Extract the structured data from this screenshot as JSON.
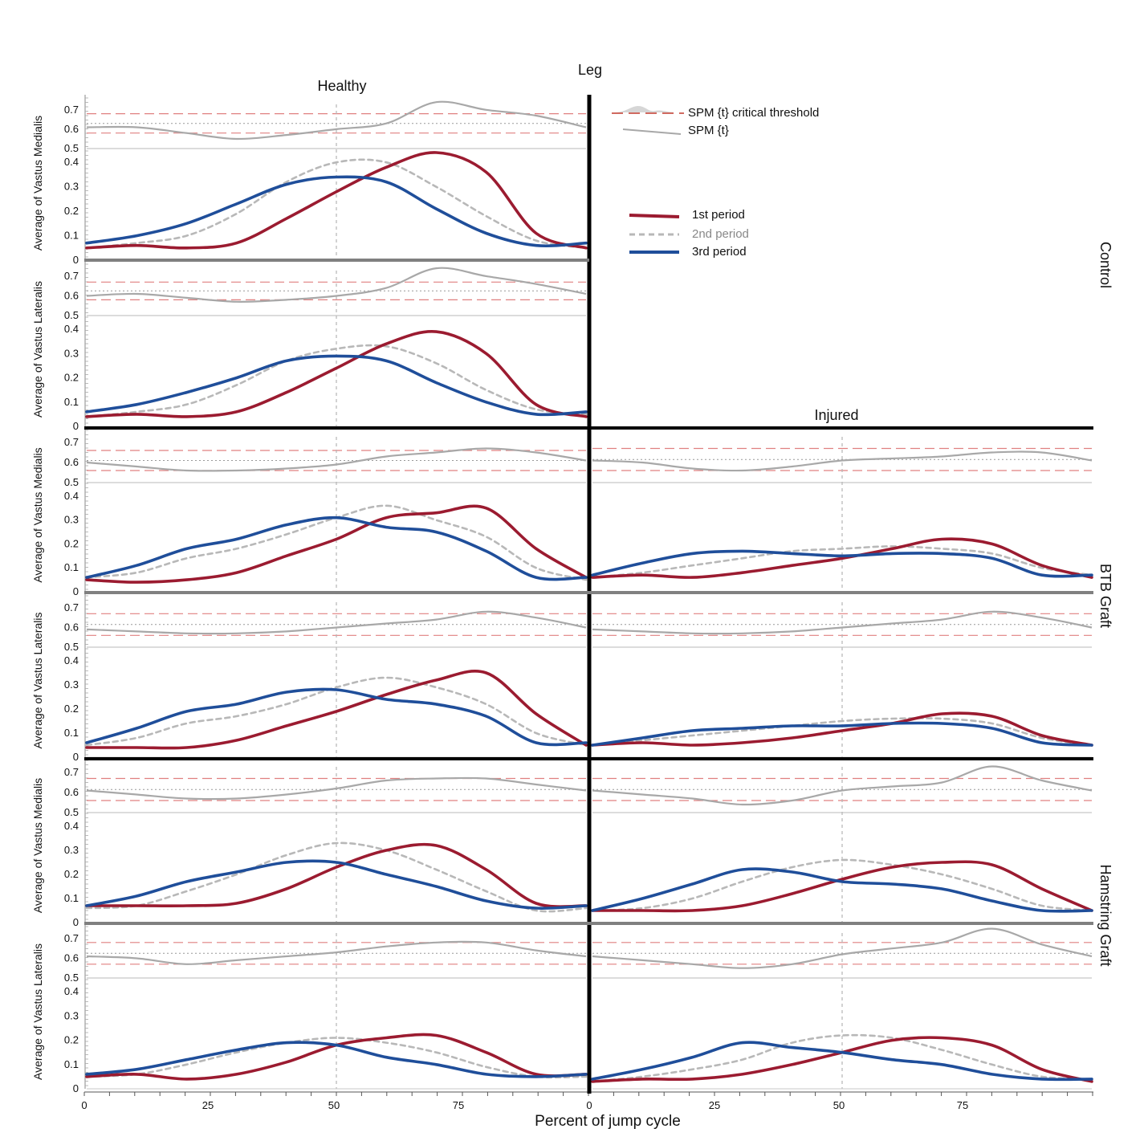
{
  "chart_data": {
    "type": "line",
    "headers": {
      "leg": "Leg",
      "healthy": "Healthy",
      "injured": "Injured"
    },
    "xlabel": "Percent of jump cycle",
    "xticks": [
      "0",
      "25",
      "50",
      "75",
      "0",
      "25",
      "50",
      "75"
    ],
    "legend": {
      "threshold": "SPM {t} critical threshold",
      "spm": "SPM {t}",
      "series": [
        {
          "name": "1st period",
          "color": "#9b1b30",
          "style": "solid"
        },
        {
          "name": "2nd period",
          "color": "#b8b8b8",
          "style": "dashed"
        },
        {
          "name": "3rd period",
          "color": "#1f4e9a",
          "style": "solid"
        }
      ]
    },
    "colors": {
      "first": "#9b1b30",
      "second": "#b8b8b8",
      "third": "#1f4e9a",
      "spm": "#a8a8a8",
      "threshold": "#e08080"
    },
    "ylabels": [
      "Average of Vastus Medialis",
      "Average of Vastus Lateralis"
    ],
    "spm_ticks": [
      "0.7",
      "0.6",
      "0.5"
    ],
    "emg_ticks": [
      "0.4",
      "0.3",
      "0.2",
      "0.1",
      "0"
    ],
    "groups": [
      {
        "name": "Control",
        "panels": [
          {
            "muscle": "Average of Vastus Medialis",
            "healthy": {
              "x": [
                0,
                10,
                20,
                30,
                40,
                50,
                60,
                70,
                80,
                90,
                100
              ],
              "first": [
                0.05,
                0.06,
                0.05,
                0.07,
                0.17,
                0.28,
                0.38,
                0.44,
                0.36,
                0.11,
                0.05
              ],
              "second": [
                0.05,
                0.07,
                0.1,
                0.19,
                0.32,
                0.4,
                0.4,
                0.3,
                0.18,
                0.08,
                0.05
              ],
              "third": [
                0.07,
                0.1,
                0.15,
                0.23,
                0.31,
                0.34,
                0.32,
                0.21,
                0.11,
                0.06,
                0.07
              ],
              "spm": [
                0.61,
                0.61,
                0.58,
                0.55,
                0.57,
                0.6,
                0.63,
                0.74,
                0.7,
                0.67,
                0.61
              ],
              "threshold": [
                0.68,
                0.58
              ]
            }
          },
          {
            "muscle": "Average of Vastus Lateralis",
            "healthy": {
              "x": [
                0,
                10,
                20,
                30,
                40,
                50,
                60,
                70,
                80,
                90,
                100
              ],
              "first": [
                0.04,
                0.05,
                0.04,
                0.06,
                0.14,
                0.24,
                0.34,
                0.39,
                0.3,
                0.09,
                0.04
              ],
              "second": [
                0.04,
                0.06,
                0.09,
                0.17,
                0.27,
                0.32,
                0.33,
                0.26,
                0.15,
                0.07,
                0.05
              ],
              "third": [
                0.06,
                0.09,
                0.14,
                0.2,
                0.27,
                0.29,
                0.27,
                0.18,
                0.1,
                0.05,
                0.06
              ],
              "spm": [
                0.6,
                0.61,
                0.59,
                0.57,
                0.58,
                0.6,
                0.64,
                0.74,
                0.7,
                0.66,
                0.61
              ],
              "threshold": [
                0.67,
                0.58
              ]
            }
          }
        ]
      },
      {
        "name": "BTB Graft",
        "panels": [
          {
            "muscle": "Average of Vastus Medialis",
            "healthy": {
              "x": [
                0,
                10,
                20,
                30,
                40,
                50,
                60,
                70,
                80,
                90,
                100
              ],
              "first": [
                0.05,
                0.04,
                0.05,
                0.08,
                0.15,
                0.22,
                0.31,
                0.33,
                0.35,
                0.18,
                0.06
              ],
              "second": [
                0.06,
                0.08,
                0.14,
                0.18,
                0.24,
                0.31,
                0.36,
                0.3,
                0.23,
                0.1,
                0.05
              ],
              "third": [
                0.06,
                0.11,
                0.18,
                0.22,
                0.28,
                0.31,
                0.27,
                0.25,
                0.17,
                0.06,
                0.06
              ],
              "spm": [
                0.6,
                0.58,
                0.56,
                0.56,
                0.57,
                0.59,
                0.63,
                0.65,
                0.67,
                0.65,
                0.61
              ],
              "threshold": [
                0.66,
                0.56
              ]
            },
            "injured": {
              "x": [
                0,
                10,
                20,
                30,
                40,
                50,
                60,
                70,
                80,
                90,
                100
              ],
              "first": [
                0.06,
                0.07,
                0.06,
                0.08,
                0.11,
                0.14,
                0.18,
                0.22,
                0.2,
                0.11,
                0.06
              ],
              "second": [
                0.06,
                0.08,
                0.11,
                0.14,
                0.17,
                0.18,
                0.19,
                0.18,
                0.16,
                0.1,
                0.07
              ],
              "third": [
                0.07,
                0.12,
                0.16,
                0.17,
                0.16,
                0.15,
                0.16,
                0.16,
                0.14,
                0.07,
                0.07
              ],
              "spm": [
                0.61,
                0.6,
                0.57,
                0.56,
                0.58,
                0.61,
                0.62,
                0.63,
                0.65,
                0.65,
                0.61
              ],
              "threshold": [
                0.67,
                0.56
              ]
            }
          },
          {
            "muscle": "Average of Vastus Lateralis",
            "healthy": {
              "x": [
                0,
                10,
                20,
                30,
                40,
                50,
                60,
                70,
                80,
                90,
                100
              ],
              "first": [
                0.04,
                0.04,
                0.04,
                0.07,
                0.13,
                0.19,
                0.26,
                0.32,
                0.35,
                0.18,
                0.05
              ],
              "second": [
                0.05,
                0.08,
                0.14,
                0.17,
                0.22,
                0.29,
                0.33,
                0.29,
                0.22,
                0.1,
                0.05
              ],
              "third": [
                0.06,
                0.12,
                0.19,
                0.22,
                0.27,
                0.28,
                0.24,
                0.22,
                0.17,
                0.06,
                0.06
              ],
              "spm": [
                0.59,
                0.58,
                0.57,
                0.57,
                0.58,
                0.6,
                0.62,
                0.64,
                0.68,
                0.65,
                0.6
              ],
              "threshold": [
                0.67,
                0.56
              ]
            },
            "injured": {
              "x": [
                0,
                10,
                20,
                30,
                40,
                50,
                60,
                70,
                80,
                90,
                100
              ],
              "first": [
                0.05,
                0.06,
                0.05,
                0.06,
                0.08,
                0.11,
                0.14,
                0.18,
                0.17,
                0.09,
                0.05
              ],
              "second": [
                0.05,
                0.07,
                0.09,
                0.11,
                0.13,
                0.15,
                0.16,
                0.16,
                0.14,
                0.08,
                0.05
              ],
              "third": [
                0.05,
                0.08,
                0.11,
                0.12,
                0.13,
                0.13,
                0.14,
                0.14,
                0.12,
                0.06,
                0.05
              ],
              "spm": [
                0.59,
                0.58,
                0.57,
                0.57,
                0.58,
                0.6,
                0.62,
                0.64,
                0.68,
                0.65,
                0.6
              ],
              "threshold": [
                0.67,
                0.56
              ]
            }
          }
        ]
      },
      {
        "name": "Hamstring Graft",
        "panels": [
          {
            "muscle": "Average of Vastus Medialis",
            "healthy": {
              "x": [
                0,
                10,
                20,
                30,
                40,
                50,
                60,
                70,
                80,
                90,
                100
              ],
              "first": [
                0.07,
                0.07,
                0.07,
                0.08,
                0.14,
                0.23,
                0.3,
                0.32,
                0.22,
                0.08,
                0.07
              ],
              "second": [
                0.06,
                0.07,
                0.13,
                0.2,
                0.28,
                0.33,
                0.3,
                0.22,
                0.13,
                0.05,
                0.06
              ],
              "third": [
                0.07,
                0.11,
                0.17,
                0.21,
                0.25,
                0.25,
                0.2,
                0.15,
                0.09,
                0.06,
                0.07
              ],
              "spm": [
                0.61,
                0.59,
                0.57,
                0.57,
                0.59,
                0.62,
                0.66,
                0.67,
                0.67,
                0.64,
                0.61
              ],
              "threshold": [
                0.67,
                0.56
              ]
            },
            "injured": {
              "x": [
                0,
                10,
                20,
                30,
                40,
                50,
                60,
                70,
                80,
                90,
                100
              ],
              "first": [
                0.05,
                0.05,
                0.05,
                0.07,
                0.12,
                0.18,
                0.23,
                0.25,
                0.24,
                0.14,
                0.05
              ],
              "second": [
                0.05,
                0.06,
                0.1,
                0.17,
                0.23,
                0.26,
                0.24,
                0.2,
                0.14,
                0.07,
                0.05
              ],
              "third": [
                0.05,
                0.1,
                0.16,
                0.22,
                0.21,
                0.17,
                0.16,
                0.14,
                0.09,
                0.05,
                0.05
              ],
              "spm": [
                0.61,
                0.59,
                0.57,
                0.54,
                0.56,
                0.61,
                0.63,
                0.65,
                0.73,
                0.66,
                0.61
              ],
              "threshold": [
                0.67,
                0.56
              ]
            }
          },
          {
            "muscle": "Average of Vastus Lateralis",
            "healthy": {
              "x": [
                0,
                10,
                20,
                30,
                40,
                50,
                60,
                70,
                80,
                90,
                100
              ],
              "first": [
                0.05,
                0.06,
                0.04,
                0.06,
                0.11,
                0.18,
                0.21,
                0.22,
                0.15,
                0.06,
                0.06
              ],
              "second": [
                0.05,
                0.06,
                0.1,
                0.15,
                0.19,
                0.21,
                0.19,
                0.15,
                0.09,
                0.05,
                0.05
              ],
              "third": [
                0.06,
                0.08,
                0.12,
                0.16,
                0.19,
                0.18,
                0.13,
                0.1,
                0.06,
                0.05,
                0.06
              ],
              "spm": [
                0.61,
                0.6,
                0.57,
                0.59,
                0.61,
                0.63,
                0.66,
                0.68,
                0.68,
                0.64,
                0.61
              ],
              "threshold": [
                0.68,
                0.57
              ]
            },
            "injured": {
              "x": [
                0,
                10,
                20,
                30,
                40,
                50,
                60,
                70,
                80,
                90,
                100
              ],
              "first": [
                0.03,
                0.04,
                0.04,
                0.06,
                0.1,
                0.15,
                0.2,
                0.21,
                0.18,
                0.08,
                0.03
              ],
              "second": [
                0.03,
                0.05,
                0.08,
                0.12,
                0.19,
                0.22,
                0.21,
                0.16,
                0.1,
                0.05,
                0.04
              ],
              "third": [
                0.04,
                0.08,
                0.13,
                0.19,
                0.17,
                0.15,
                0.12,
                0.1,
                0.06,
                0.04,
                0.04
              ],
              "spm": [
                0.61,
                0.59,
                0.57,
                0.55,
                0.57,
                0.62,
                0.65,
                0.68,
                0.75,
                0.67,
                0.61
              ],
              "threshold": [
                0.68,
                0.57
              ]
            }
          }
        ]
      }
    ]
  }
}
